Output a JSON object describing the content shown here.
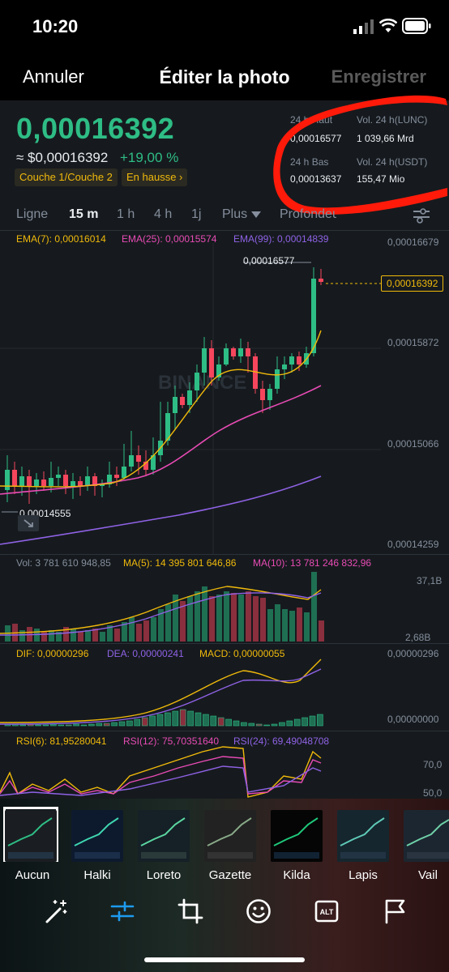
{
  "status_bar": {
    "time": "10:20"
  },
  "nav": {
    "cancel": "Annuler",
    "title": "Éditer la photo",
    "save": "Enregistrer"
  },
  "ticker": {
    "price": "0,00016392",
    "usd_price": "≈ $0,00016392",
    "change": "+19,00 %",
    "tags": [
      "Couche 1/Couche 2",
      "En hausse ›"
    ],
    "stats": {
      "high_label": "24 h Haut",
      "high_value": "0,00016577",
      "low_label": "24 h Bas",
      "low_value": "0,00013637",
      "vol_lunc_label": "Vol. 24 h(LUNC)",
      "vol_lunc_value": "1 039,66 Mrd",
      "vol_usdt_label": "Vol. 24 h(USDT)",
      "vol_usdt_value": "155,47 Mio"
    }
  },
  "timeframes": [
    {
      "label": "Ligne",
      "active": false
    },
    {
      "label": "15 m",
      "active": true
    },
    {
      "label": "1 h",
      "active": false
    },
    {
      "label": "4 h",
      "active": false
    },
    {
      "label": "1j",
      "active": false
    },
    {
      "label": "Plus",
      "active": false
    },
    {
      "label": "Profondeur",
      "active": false
    }
  ],
  "main_indicators": {
    "ema7": "EMA(7): 0,00016014",
    "ema25": "EMA(25): 0,00015574",
    "ema99": "EMA(99): 0,00014839"
  },
  "price_axis": [
    "0,00016679",
    "0,00015872",
    "0,00015066",
    "0,00014259"
  ],
  "current_price_label": "0,00016392",
  "high_marker": "0,00016577",
  "low_marker": "0,00014555",
  "watermark": "BINANCE",
  "volume": {
    "vol": "Vol: 3 781 610 948,85",
    "ma5": "MA(5): 14 395 801 646,86",
    "ma10": "MA(10): 13 781 246 832,96",
    "axis_top": "37,1B",
    "axis_bottom": "2,68B"
  },
  "macd": {
    "dif": "DIF: 0,00000296",
    "dea": "DEA: 0,00000241",
    "macd": "MACD: 0,00000055",
    "axis_top": "0,00000296",
    "axis_bottom": "0,00000000"
  },
  "rsi": {
    "rsi6": "RSI(6): 81,95280041",
    "rsi12": "RSI(12): 75,70351640",
    "rsi24": "RSI(24): 69,49048708",
    "axis_70": "70,0",
    "axis_50": "50,0"
  },
  "colors": {
    "up": "#2ebd85",
    "down": "#f6465d",
    "ema7": "#f0b90b",
    "ema25": "#e84bb5",
    "ema99": "#8f62e6",
    "annotation": "#ff1a0a"
  },
  "filters": [
    "Aucun",
    "Halki",
    "Loreto",
    "Gazette",
    "Kilda",
    "Lapis",
    "Vail"
  ],
  "tools": [
    "magic-wand-icon",
    "sliders-icon",
    "crop-icon",
    "emoji-icon",
    "alt-text-icon",
    "flag-icon"
  ]
}
